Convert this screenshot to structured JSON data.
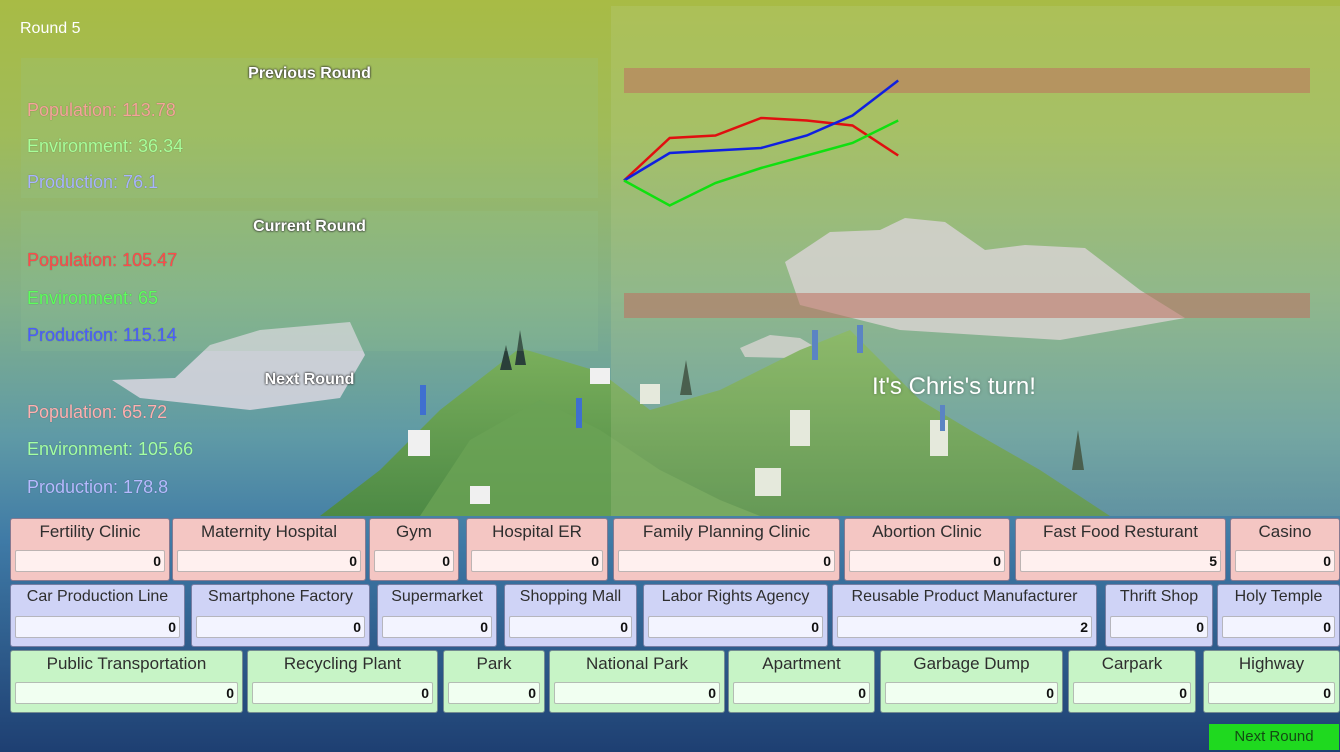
{
  "round_label": "Round 5",
  "previous": {
    "title": "Previous Round",
    "population": "Population: 113.78",
    "environment": "Environment: 36.34",
    "production": "Production: 76.1"
  },
  "current": {
    "title": "Current Round",
    "population": "Population: 105.47",
    "environment": "Environment: 65",
    "production": "Production: 115.14"
  },
  "next": {
    "title": "Next Round",
    "population": "Population: 65.72",
    "environment": "Environment: 105.66",
    "production": "Production: 178.8"
  },
  "turn_message": "It's Chris's turn!",
  "chart_data": {
    "type": "line",
    "title": "",
    "xlabel": "",
    "ylabel": "",
    "x": [
      1,
      2,
      3,
      4,
      5,
      6,
      7
    ],
    "series": [
      {
        "color": "#e01010",
        "values": [
          0.55,
          0.72,
          0.73,
          0.8,
          0.79,
          0.77,
          0.65
        ]
      },
      {
        "color": "#1020e0",
        "values": [
          0.55,
          0.66,
          0.67,
          0.68,
          0.73,
          0.81,
          0.95
        ]
      },
      {
        "color": "#10e010",
        "values": [
          0.55,
          0.45,
          0.54,
          0.6,
          0.65,
          0.7,
          0.79
        ]
      }
    ],
    "bands": [
      {
        "from": 0.9,
        "to": 1.0
      },
      {
        "from": 0.0,
        "to": 0.1
      }
    ],
    "band_color": "#c07060",
    "ylim": [
      0,
      1
    ],
    "grid": false
  },
  "buildings": {
    "row1": [
      {
        "label": "Fertility Clinic",
        "value": "0"
      },
      {
        "label": "Maternity Hospital",
        "value": "0"
      },
      {
        "label": "Gym",
        "value": "0"
      },
      {
        "label": "Hospital ER",
        "value": "0"
      },
      {
        "label": "Family Planning Clinic",
        "value": "0"
      },
      {
        "label": "Abortion Clinic",
        "value": "0"
      },
      {
        "label": "Fast Food Resturant",
        "value": "5"
      },
      {
        "label": "Casino",
        "value": "0"
      }
    ],
    "row2": [
      {
        "label": "Car Production Line",
        "value": "0"
      },
      {
        "label": "Smartphone Factory",
        "value": "0"
      },
      {
        "label": "Supermarket",
        "value": "0"
      },
      {
        "label": "Shopping Mall",
        "value": "0"
      },
      {
        "label": "Labor Rights Agency",
        "value": "0"
      },
      {
        "label": "Reusable Product Manufacturer",
        "value": "2"
      },
      {
        "label": "Thrift Shop",
        "value": "0"
      },
      {
        "label": "Holy Temple",
        "value": "0"
      }
    ],
    "row3": [
      {
        "label": "Public Transportation",
        "value": "0"
      },
      {
        "label": "Recycling Plant",
        "value": "0"
      },
      {
        "label": "Park",
        "value": "0"
      },
      {
        "label": "National Park",
        "value": "0"
      },
      {
        "label": "Apartment",
        "value": "0"
      },
      {
        "label": "Garbage Dump",
        "value": "0"
      },
      {
        "label": "Carpark",
        "value": "0"
      },
      {
        "label": "Highway",
        "value": "0"
      }
    ]
  },
  "next_button": "Next Round",
  "colors": {
    "sky_top": "#a8bb45",
    "sea": "#1e3f72",
    "button": "#1fd91f",
    "row1": "#f4c6c3",
    "row2": "#cfd3f6",
    "row3": "#c7f4c6"
  }
}
